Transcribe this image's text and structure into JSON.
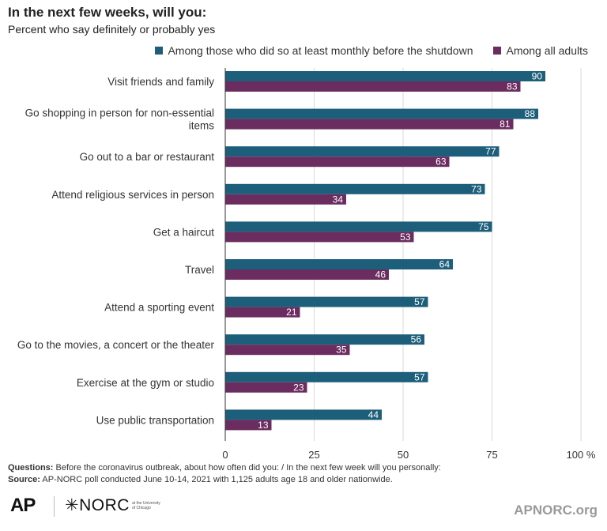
{
  "header": {
    "title": "In the next few weeks, will you:",
    "subtitle": "Percent who say definitely or probably yes"
  },
  "legend": {
    "series_1": "Among those who did so at least monthly before the shutdown",
    "series_2": "Among all adults"
  },
  "chart_data": {
    "type": "bar",
    "orientation": "horizontal",
    "categories": [
      [
        "Visit friends and family"
      ],
      [
        "Go shopping in person for non-essential",
        "items"
      ],
      [
        "Go out to a bar or restaurant"
      ],
      [
        "Attend religious services in person"
      ],
      [
        "Get a haircut"
      ],
      [
        "Travel"
      ],
      [
        "Attend a sporting event"
      ],
      [
        "Go to the movies, a concert or the theater"
      ],
      [
        "Exercise at the gym or studio"
      ],
      [
        "Use public transportation"
      ]
    ],
    "series": [
      {
        "name": "Among those who did so at least monthly before the shutdown",
        "color": "#1d5f7a",
        "values": [
          90,
          88,
          77,
          73,
          75,
          64,
          57,
          56,
          57,
          44
        ]
      },
      {
        "name": "Among all adults",
        "color": "#6b2c5f",
        "values": [
          83,
          81,
          63,
          34,
          53,
          46,
          21,
          35,
          23,
          13
        ]
      }
    ],
    "xlim": [
      0,
      100
    ],
    "xticks": [
      "0",
      "25",
      "50",
      "75",
      "100 %"
    ],
    "xtick_values": [
      0,
      25,
      50,
      75,
      100
    ],
    "grid": true,
    "legend_position": "top-right"
  },
  "footer": {
    "questions_label": "Questions:",
    "questions_text": " Before the coronavirus outbreak, about how often did you: / In the next few week will you personally:",
    "source_label": "Source:",
    "source_text": " AP-NORC poll conducted June 10-14, 2021 with 1,125 adults age 18 and older nationwide."
  },
  "branding": {
    "ap": "AP",
    "norc": "✳NORC",
    "norc_sub": "at the University of Chicago",
    "site": "APNORC.org"
  }
}
